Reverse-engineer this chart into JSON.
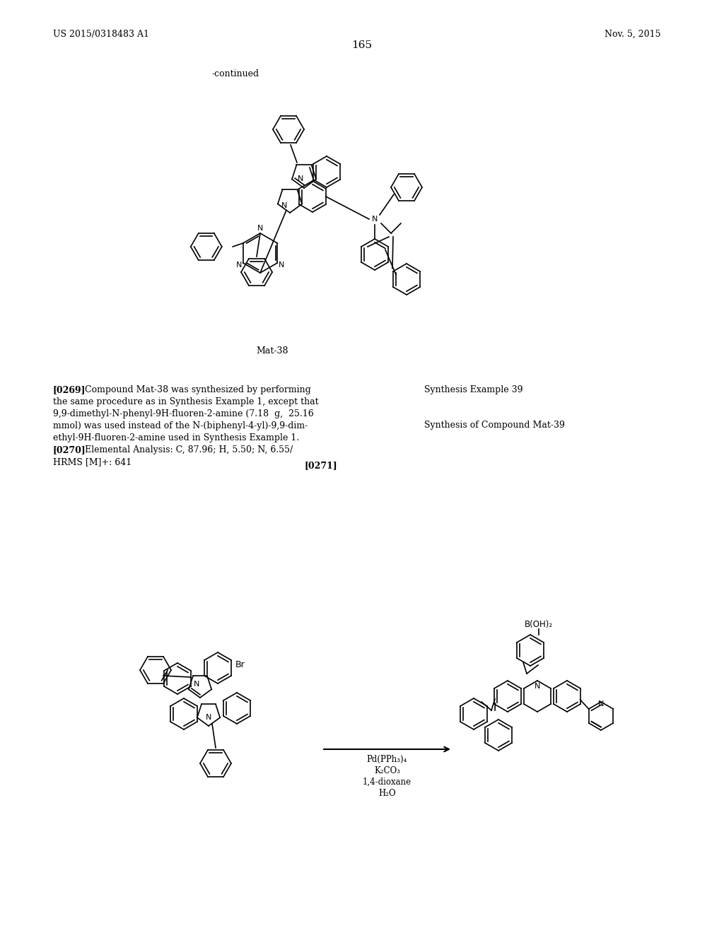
{
  "background_color": "#ffffff",
  "page_header_left": "US 2015/0318483 A1",
  "page_header_right": "Nov. 5, 2015",
  "page_number": "165",
  "continued_text": "-continued",
  "compound_label": "Mat-38",
  "paragraph_0269_label": "[0269]",
  "synthesis_example_39_title": "Synthesis Example 39",
  "synthesis_of_compound": "Synthesis of Compound Mat-39",
  "paragraph_0271_label": "[0271]",
  "reagents_line1": "Pd(PPh₃)₄",
  "reagents_line2": "K₂CO₃",
  "reagents_line3": "1,4-dioxane",
  "reagents_line4": "H₂O",
  "br_label": "Br",
  "b_oh_2_label": "B(OH)₂",
  "n_label": "N"
}
